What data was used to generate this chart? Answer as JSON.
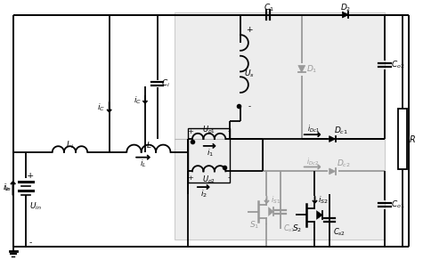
{
  "fig_width": 4.75,
  "fig_height": 2.92,
  "dpi": 100,
  "bg_color": "#ffffff",
  "line_color": "#000000",
  "gray_color": "#999999"
}
